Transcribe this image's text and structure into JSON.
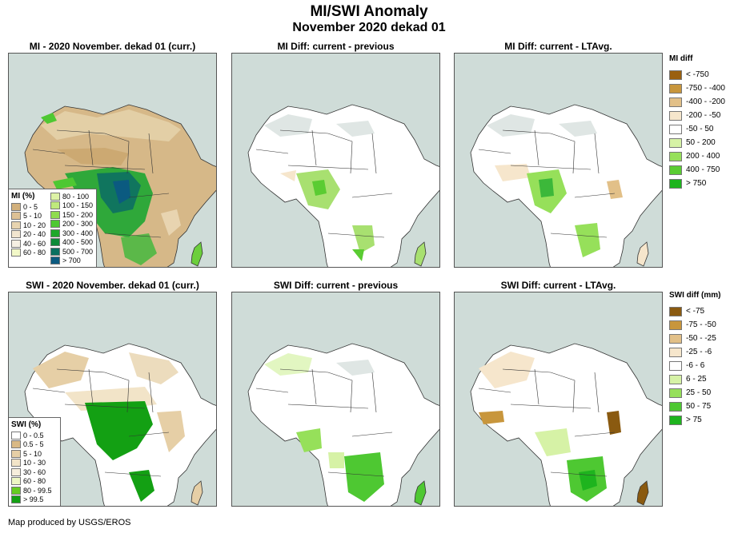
{
  "title": "MI/SWI Anomaly",
  "subtitle": "November 2020 dekad 01",
  "footer": "Map produced by USGS/EROS",
  "panels": {
    "mi_current": "MI - 2020 November. dekad 01 (curr.)",
    "mi_diff_prev": "MI Diff: current - previous",
    "mi_diff_lta": "MI Diff: current - LTAvg.",
    "swi_current": "SWI - 2020 November. dekad 01 (curr.)",
    "swi_diff_prev": "SWI Diff: current - previous",
    "swi_diff_lta": "SWI Diff: current - LTAvg."
  },
  "legends": {
    "mi": {
      "title": "MI (%)",
      "col1": [
        {
          "label": "0 - 5",
          "color": "#d2b07c"
        },
        {
          "label": "5 - 10",
          "color": "#ddc195"
        },
        {
          "label": "10 - 20",
          "color": "#e8d4b0"
        },
        {
          "label": "20 - 40",
          "color": "#f1e5cf"
        },
        {
          "label": "40 - 60",
          "color": "#f6f0e3"
        },
        {
          "label": "60 - 80",
          "color": "#f2f8c8"
        }
      ],
      "col2": [
        {
          "label": "80 - 100",
          "color": "#ddf2a6"
        },
        {
          "label": "100 - 150",
          "color": "#bfe97c"
        },
        {
          "label": "150 - 200",
          "color": "#8fdc4e"
        },
        {
          "label": "200 - 300",
          "color": "#4ec832"
        },
        {
          "label": "300 - 400",
          "color": "#1ea82a"
        },
        {
          "label": "400 - 500",
          "color": "#0e8a38"
        },
        {
          "label": "500 - 700",
          "color": "#0a7060"
        },
        {
          "label": "> 700",
          "color": "#0b5a80"
        }
      ]
    },
    "swi": {
      "title": "SWI (%)",
      "items": [
        {
          "label": "0 - 0.5",
          "color": "#ffffff"
        },
        {
          "label": "0.5 - 5",
          "color": "#d9b985"
        },
        {
          "label": "5 - 10",
          "color": "#e6cfa6"
        },
        {
          "label": "10 - 30",
          "color": "#f2e4c8"
        },
        {
          "label": "30 - 60",
          "color": "#f7eedc"
        },
        {
          "label": "60 - 80",
          "color": "#eef7c4"
        },
        {
          "label": "80 - 99.5",
          "color": "#66cc22"
        },
        {
          "label": "> 99.5",
          "color": "#13a013"
        }
      ]
    },
    "mi_diff": {
      "title": "MI diff",
      "items": [
        {
          "label": "< -750",
          "color": "#9a6010"
        },
        {
          "label": "-750 - -400",
          "color": "#c8963c"
        },
        {
          "label": "-400 - -200",
          "color": "#e2c088"
        },
        {
          "label": "-200 - -50",
          "color": "#f6e6cc"
        },
        {
          "label": "-50 - 50",
          "color": "#ffffff"
        },
        {
          "label": "50 - 200",
          "color": "#d6f2a6"
        },
        {
          "label": "200 - 400",
          "color": "#96e05a"
        },
        {
          "label": "400 - 750",
          "color": "#5acc32"
        },
        {
          "label": "> 750",
          "color": "#1eb41e"
        }
      ]
    },
    "swi_diff": {
      "title": "SWI diff (mm)",
      "items": [
        {
          "label": "< -75",
          "color": "#8a5a10"
        },
        {
          "label": "-75 - -50",
          "color": "#c8963c"
        },
        {
          "label": "-50 - -25",
          "color": "#e2c088"
        },
        {
          "label": "-25 - -6",
          "color": "#f6e6cc"
        },
        {
          "label": "-6 - 6",
          "color": "#ffffff"
        },
        {
          "label": "6 - 25",
          "color": "#d6f2a6"
        },
        {
          "label": "25 - 50",
          "color": "#96e05a"
        },
        {
          "label": "50 - 75",
          "color": "#4ec832"
        },
        {
          "label": "> 75",
          "color": "#1eb41e"
        }
      ]
    }
  }
}
